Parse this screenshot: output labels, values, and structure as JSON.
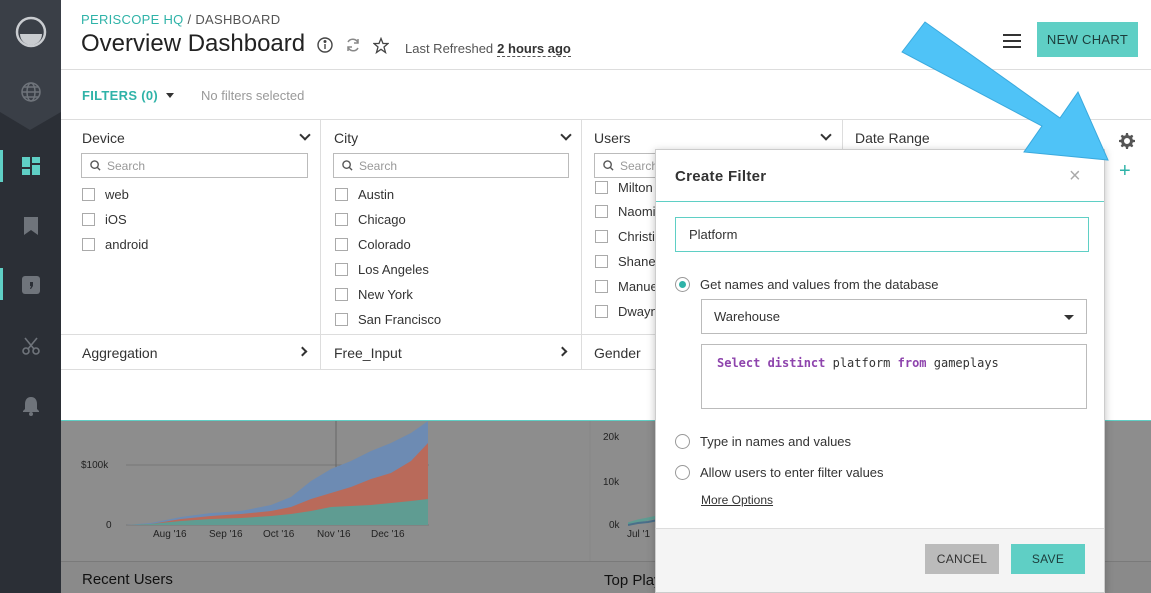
{
  "header": {
    "breadcrumb_org": "PERISCOPE HQ",
    "breadcrumb_sep": " / ",
    "breadcrumb_page": "DASHBOARD",
    "title": "Overview Dashboard",
    "last_refreshed_label": "Last Refreshed",
    "last_refreshed_value": "2 hours ago",
    "new_chart_label": "NEW CHART"
  },
  "filterbar": {
    "filters_label": "FILTERS (0)",
    "no_filters_text": "No filters selected"
  },
  "panels": {
    "device": {
      "title": "Device",
      "search_placeholder": "Search",
      "options": [
        "web",
        "iOS",
        "android"
      ]
    },
    "city": {
      "title": "City",
      "search_placeholder": "Search",
      "options": [
        "Austin",
        "Chicago",
        "Colorado",
        "Los Angeles",
        "New York",
        "San Francisco"
      ]
    },
    "users": {
      "title": "Users",
      "search_placeholder": "Search",
      "options": [
        "Milton",
        "Naomi",
        "Christi",
        "Shane",
        "Manue",
        "Dwayn"
      ]
    },
    "date_range": {
      "title": "Date Range"
    },
    "aggregation": {
      "title": "Aggregation"
    },
    "free_input": {
      "title": "Free_Input"
    },
    "gender": {
      "title": "Gender"
    }
  },
  "dashboard": {
    "chart1": {
      "y_ticks": [
        "$100k",
        "0"
      ],
      "x_ticks": [
        "Aug '16",
        "Sep '16",
        "Oct '16",
        "Nov '16",
        "Dec '16"
      ]
    },
    "chart2": {
      "y_ticks": [
        "20k",
        "10k",
        "0k"
      ],
      "x_ticks": [
        "Jul '1"
      ]
    },
    "recent_users_title": "Recent Users",
    "top_players_title": "Top Play"
  },
  "modal": {
    "title": "Create Filter",
    "close": "×",
    "name_value": "Platform",
    "option_db": "Get names and values from the database",
    "database_select": "Warehouse",
    "sql_kw1": "Select distinct",
    "sql_col": " platform ",
    "sql_kw2": "from",
    "sql_table": " gameplays",
    "option_type": "Type in names and values",
    "option_allow": "Allow users to enter filter values",
    "more_options": "More Options",
    "cancel_label": "CANCEL",
    "save_label": "SAVE"
  },
  "colors": {
    "accent": "#5fcfc5",
    "accent_text": "#2fb3a8",
    "sidebar": "#2b2f36",
    "sql_keyword": "#8e44ad",
    "arrow": "#4fc3f7"
  }
}
